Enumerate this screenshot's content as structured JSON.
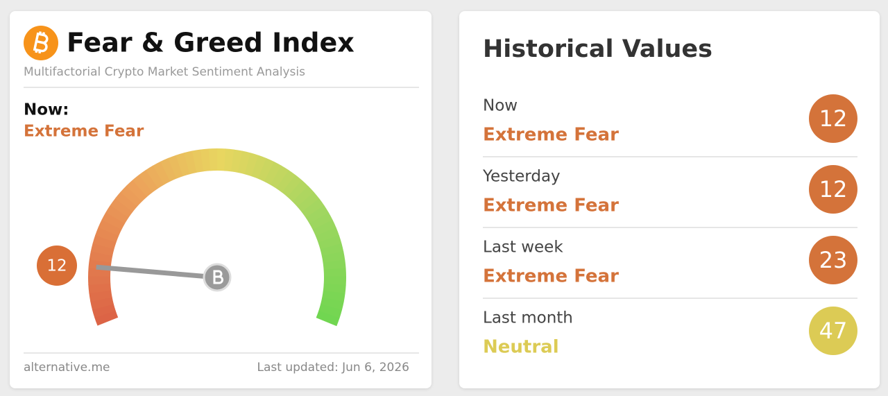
{
  "left_card": {
    "title": "Fear & Greed Index",
    "subtitle": "Multifactorial Crypto Market Sentiment Analysis",
    "now_label": "Now:",
    "classification": "Extreme Fear",
    "classification_color": "#d4733a",
    "gauge": {
      "value": 12,
      "range": [
        0,
        100
      ],
      "color": "#d96f36"
    },
    "footer_source": "alternative.me",
    "footer_updated": "Last updated: Jun 6, 2026"
  },
  "right_card": {
    "title": "Historical Values",
    "rows": [
      {
        "period": "Now",
        "classification": "Extreme Fear",
        "value": 12,
        "color": "#d4733a"
      },
      {
        "period": "Yesterday",
        "classification": "Extreme Fear",
        "value": 12,
        "color": "#d4733a"
      },
      {
        "period": "Last week",
        "classification": "Extreme Fear",
        "value": 23,
        "color": "#d4733a"
      },
      {
        "period": "Last month",
        "classification": "Neutral",
        "value": 47,
        "color": "#dccb55"
      }
    ]
  }
}
